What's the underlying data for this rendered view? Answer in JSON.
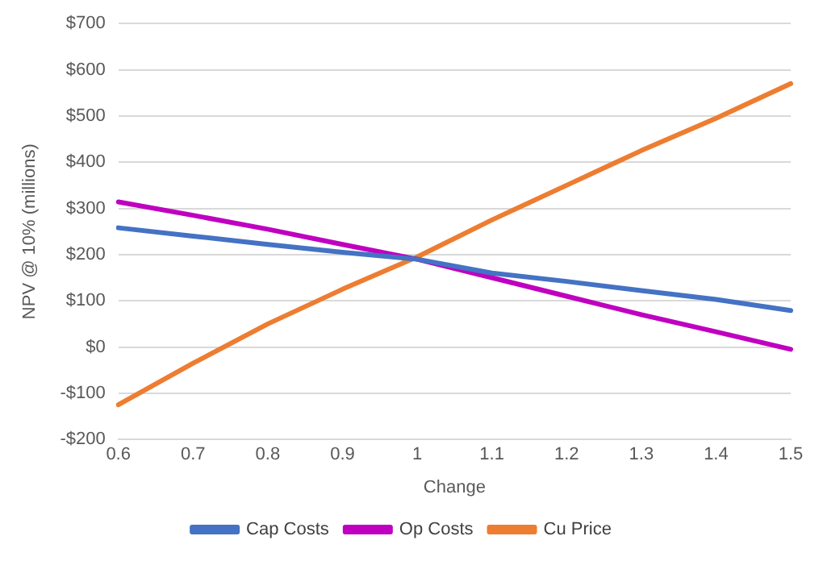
{
  "chart_data": {
    "type": "line",
    "xlabel": "Change",
    "ylabel": "NPV @ 10% (millions)",
    "categories": [
      "0.6",
      "0.7",
      "0.8",
      "0.9",
      "1",
      "1.1",
      "1.2",
      "1.3",
      "1.4",
      "1.5"
    ],
    "series": [
      {
        "name": "Cap Costs",
        "color": "#4472c4",
        "values": [
          258,
          240,
          222,
          205,
          190,
          160,
          142,
          122,
          103,
          79
        ]
      },
      {
        "name": "Op Costs",
        "color": "#c000c0",
        "values": [
          314,
          285,
          255,
          222,
          190,
          150,
          110,
          70,
          33,
          -5
        ]
      },
      {
        "name": "Cu Price",
        "color": "#ed7d31",
        "values": [
          -125,
          -35,
          50,
          125,
          195,
          275,
          350,
          425,
          495,
          570
        ]
      }
    ],
    "ylim": [
      -200,
      700
    ],
    "yticks": [
      {
        "value": -200,
        "label": "-$200"
      },
      {
        "value": -100,
        "label": "-$100"
      },
      {
        "value": 0,
        "label": "$0"
      },
      {
        "value": 100,
        "label": "$100"
      },
      {
        "value": 200,
        "label": "$200"
      },
      {
        "value": 300,
        "label": "$300"
      },
      {
        "value": 400,
        "label": "$400"
      },
      {
        "value": 500,
        "label": "$500"
      },
      {
        "value": 600,
        "label": "$600"
      },
      {
        "value": 700,
        "label": "$700"
      }
    ],
    "grid": "y",
    "legend": "bottom",
    "marker": "none",
    "line_style": "solid"
  }
}
